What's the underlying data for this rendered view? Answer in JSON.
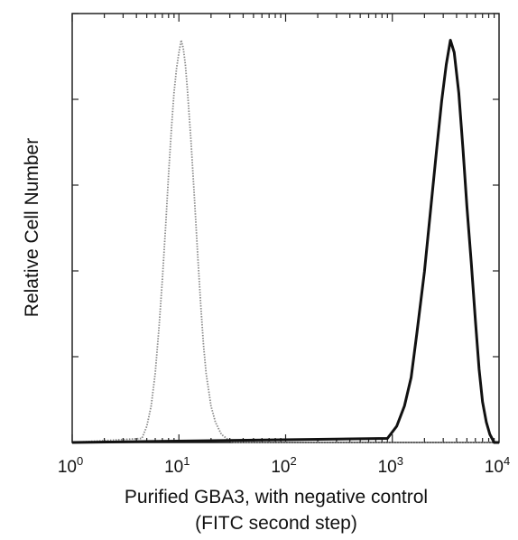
{
  "chart_data": {
    "type": "area",
    "title": "",
    "xlabel_line1": "Purified GBA3, with negative control",
    "xlabel_line2": "(FITC second step)",
    "ylabel": "Relative Cell Number",
    "x_scale": "log",
    "xlim": [
      1,
      10000
    ],
    "ylim": [
      0,
      1
    ],
    "x_ticks": [
      {
        "base": "10",
        "exp": "0"
      },
      {
        "base": "10",
        "exp": "1"
      },
      {
        "base": "10",
        "exp": "2"
      },
      {
        "base": "10",
        "exp": "3"
      },
      {
        "base": "10",
        "exp": "4"
      }
    ],
    "y_tick_count": 5,
    "grid": false,
    "legend": "none",
    "series": [
      {
        "style": "dotted-light",
        "color": "#8a8a8a",
        "x": [
          4.5,
          5,
          5.5,
          6,
          6.5,
          7,
          7.5,
          8,
          8.5,
          9,
          9.5,
          10,
          10.5,
          11,
          11.5,
          12,
          13,
          14,
          15,
          16,
          17,
          18,
          20,
          22,
          25,
          28,
          32
        ],
        "y": [
          0.01,
          0.04,
          0.09,
          0.17,
          0.28,
          0.4,
          0.53,
          0.66,
          0.77,
          0.86,
          0.92,
          0.96,
          0.99,
          0.97,
          0.93,
          0.87,
          0.74,
          0.6,
          0.46,
          0.34,
          0.24,
          0.17,
          0.09,
          0.05,
          0.02,
          0.01,
          0.0
        ]
      },
      {
        "style": "solid-dark",
        "color": "#111111",
        "x": [
          900,
          1100,
          1300,
          1500,
          1700,
          2000,
          2300,
          2600,
          2900,
          3200,
          3500,
          3800,
          4200,
          4600,
          5000,
          5500,
          6000,
          6500,
          7000,
          7600,
          8200,
          9000
        ],
        "y": [
          0.01,
          0.04,
          0.09,
          0.16,
          0.27,
          0.42,
          0.58,
          0.72,
          0.84,
          0.93,
          0.99,
          0.96,
          0.86,
          0.72,
          0.58,
          0.44,
          0.3,
          0.18,
          0.1,
          0.05,
          0.02,
          0.0
        ]
      }
    ]
  }
}
